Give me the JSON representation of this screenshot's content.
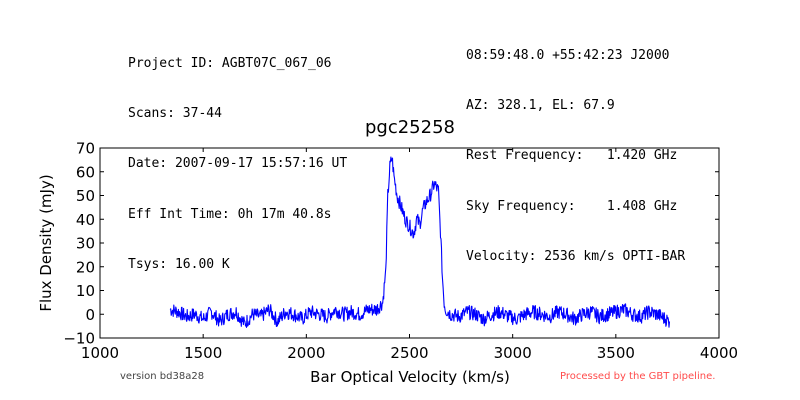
{
  "header": {
    "left": [
      "Project ID: AGBT07C_067_06",
      "Scans: 37-44",
      "Date: 2007-09-17 15:57:16 UT",
      "Eff Int Time: 0h 17m 40.8s",
      "Tsys: 16.00 K"
    ],
    "right": [
      "08:59:48.0 +55:42:23 J2000",
      "AZ: 328.1, EL: 67.9",
      "Rest Frequency:   1.420 GHz",
      "Sky Frequency:    1.408 GHz",
      "Velocity: 2536 km/s OPTI-BAR"
    ]
  },
  "footer": {
    "version": "version bd38a28",
    "pipeline": "Processed by the GBT pipeline.",
    "pipeline_color": "#ff4b4b"
  },
  "chart_data": {
    "type": "line",
    "title": "pgc25258",
    "xlabel": "Bar Optical Velocity (km/s)",
    "ylabel": "Flux Density (mJy)",
    "xlim": [
      1000,
      4000
    ],
    "ylim": [
      -10,
      70
    ],
    "xticks": [
      1000,
      1500,
      2000,
      2500,
      3000,
      3500,
      4000
    ],
    "yticks": [
      -10,
      0,
      10,
      20,
      30,
      40,
      50,
      60,
      70
    ],
    "line_color": "#0000ff",
    "grid": false,
    "series": [
      {
        "x": [
          1340,
          1380,
          1420,
          1460,
          1500,
          1540,
          1580,
          1620,
          1660,
          1700,
          1740,
          1780,
          1820,
          1860,
          1900,
          1940,
          1980,
          2020,
          2060,
          2100,
          2140,
          2180,
          2220,
          2260,
          2300,
          2340,
          2370,
          2385,
          2395,
          2405,
          2415,
          2425,
          2440,
          2460,
          2480,
          2500,
          2520,
          2535,
          2550,
          2565,
          2580,
          2600,
          2620,
          2640,
          2650,
          2660,
          2668,
          2675,
          2700,
          2740,
          2780,
          2820,
          2860,
          2900,
          2940,
          2980,
          3020,
          3060,
          3100,
          3140,
          3180,
          3220,
          3260,
          3300,
          3340,
          3380,
          3420,
          3460,
          3500,
          3540,
          3580,
          3620,
          3660,
          3700,
          3740,
          3760
        ],
        "y": [
          2,
          1,
          -1,
          0,
          -2,
          1,
          -3,
          0,
          1,
          -4,
          0,
          -1,
          2,
          -3,
          1,
          0,
          -2,
          1,
          0,
          -1,
          2,
          0,
          1,
          0,
          2,
          2,
          5,
          18,
          50,
          62,
          66,
          58,
          50,
          45,
          40,
          37,
          34,
          40,
          38,
          44,
          47,
          50,
          55,
          52,
          35,
          15,
          5,
          2,
          0,
          -1,
          1,
          0,
          -2,
          0,
          1,
          -1,
          -2,
          0,
          1,
          0,
          -1,
          1,
          0,
          -2,
          0,
          1,
          -1,
          0,
          1,
          2,
          0,
          -1,
          1,
          0,
          -2,
          -3
        ]
      }
    ]
  }
}
